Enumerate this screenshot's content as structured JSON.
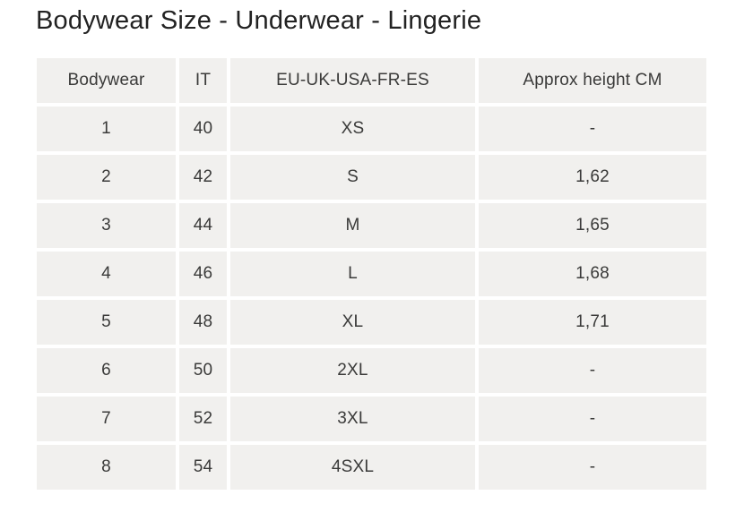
{
  "page": {
    "title": "Bodywear Size - Underwear - Lingerie"
  },
  "colors": {
    "page_background": "#ffffff",
    "cell_background": "#f1f0ee",
    "cell_text": "#3a3a39",
    "title_text": "#222222"
  },
  "table": {
    "columns": [
      "Bodywear",
      "IT",
      "EU-UK-USA-FR-ES",
      "Approx height CM"
    ],
    "rows": [
      [
        "1",
        "40",
        "XS",
        "-"
      ],
      [
        "2",
        "42",
        "S",
        "1,62"
      ],
      [
        "3",
        "44",
        "M",
        "1,65"
      ],
      [
        "4",
        "46",
        "L",
        "1,68"
      ],
      [
        "5",
        "48",
        "XL",
        "1,71"
      ],
      [
        "6",
        "50",
        "2XL",
        "-"
      ],
      [
        "7",
        "52",
        "3XL",
        "-"
      ],
      [
        "8",
        "54",
        "4SXL",
        "-"
      ]
    ]
  }
}
